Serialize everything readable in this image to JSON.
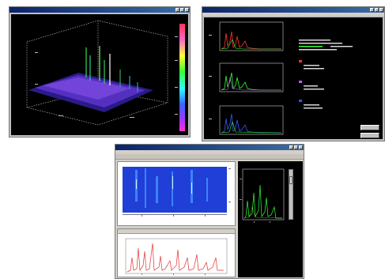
{
  "colors": {
    "titlebar": "#0a246a",
    "plot_bg": "#000000",
    "spectrum_green": "#33ff33",
    "spectrum_red": "#ff3333",
    "spectrum_blue": "#3333ff",
    "surface_purple": "#6a3acc",
    "heatmap_blue": "#1a3ad8",
    "trace_red": "#e03030"
  },
  "icons": [
    "minimize-icon",
    "maximize-icon",
    "close-icon",
    "colorbar-icon",
    "scrollbar-icon"
  ]
}
